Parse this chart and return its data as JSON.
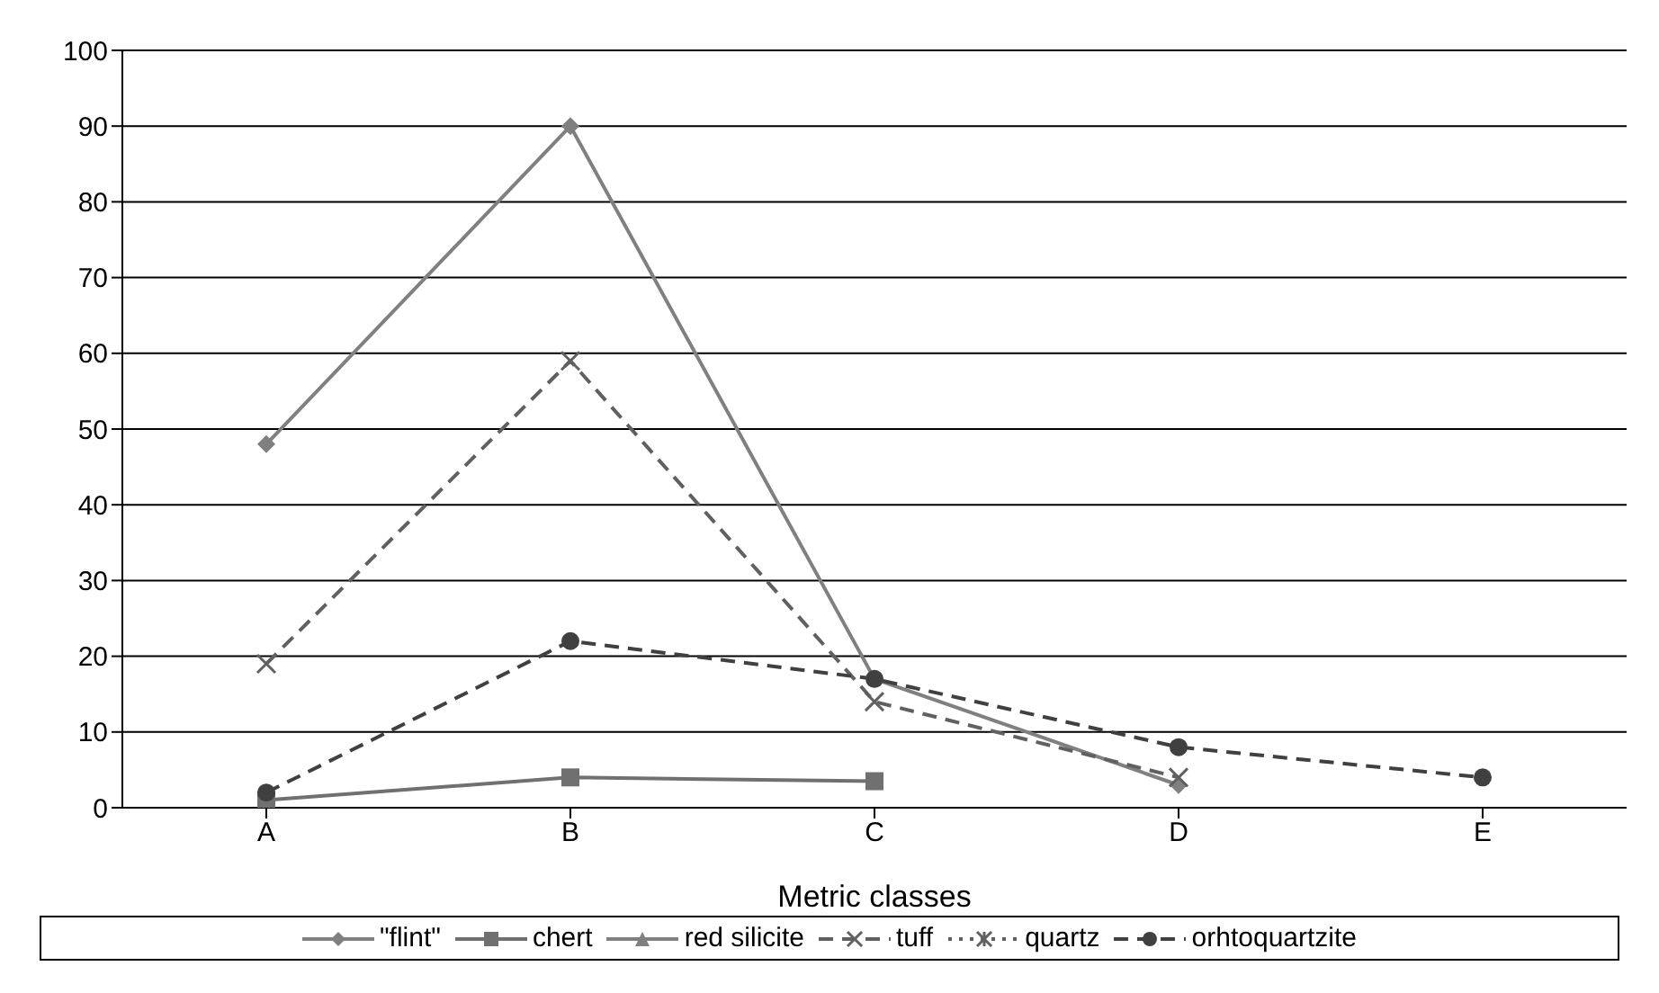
{
  "chart_data": {
    "type": "line",
    "xlabel": "Metric classes",
    "categories": [
      "A",
      "B",
      "C",
      "D",
      "E"
    ],
    "series": [
      {
        "name": "\"flint\"",
        "color": "#808080",
        "marker": "diamond",
        "line_style": "solid",
        "values": [
          48,
          90,
          17,
          3,
          null
        ]
      },
      {
        "name": "chert",
        "color": "#707070",
        "marker": "square",
        "line_style": "solid",
        "values": [
          1,
          4,
          3.5,
          null,
          null
        ]
      },
      {
        "name": "red silicite",
        "color": "#808080",
        "marker": "triangle",
        "line_style": "solid",
        "values": [
          null,
          null,
          null,
          null,
          null
        ]
      },
      {
        "name": "tuff",
        "color": "#606060",
        "marker": "cross",
        "line_style": "dashed",
        "values": [
          19,
          59,
          14,
          4,
          null
        ]
      },
      {
        "name": "quartz",
        "color": "#606060",
        "marker": "star",
        "line_style": "dotted",
        "values": [
          null,
          null,
          null,
          null,
          null
        ]
      },
      {
        "name": "orhtoquartzite",
        "color": "#404040",
        "marker": "circle",
        "line_style": "dashed",
        "values": [
          2,
          22,
          17,
          8,
          4
        ]
      }
    ],
    "ylim": [
      0,
      100
    ],
    "yticks": [
      0,
      10,
      20,
      30,
      40,
      50,
      60,
      70,
      80,
      90,
      100
    ],
    "grid": "y",
    "legend": "bottom"
  }
}
